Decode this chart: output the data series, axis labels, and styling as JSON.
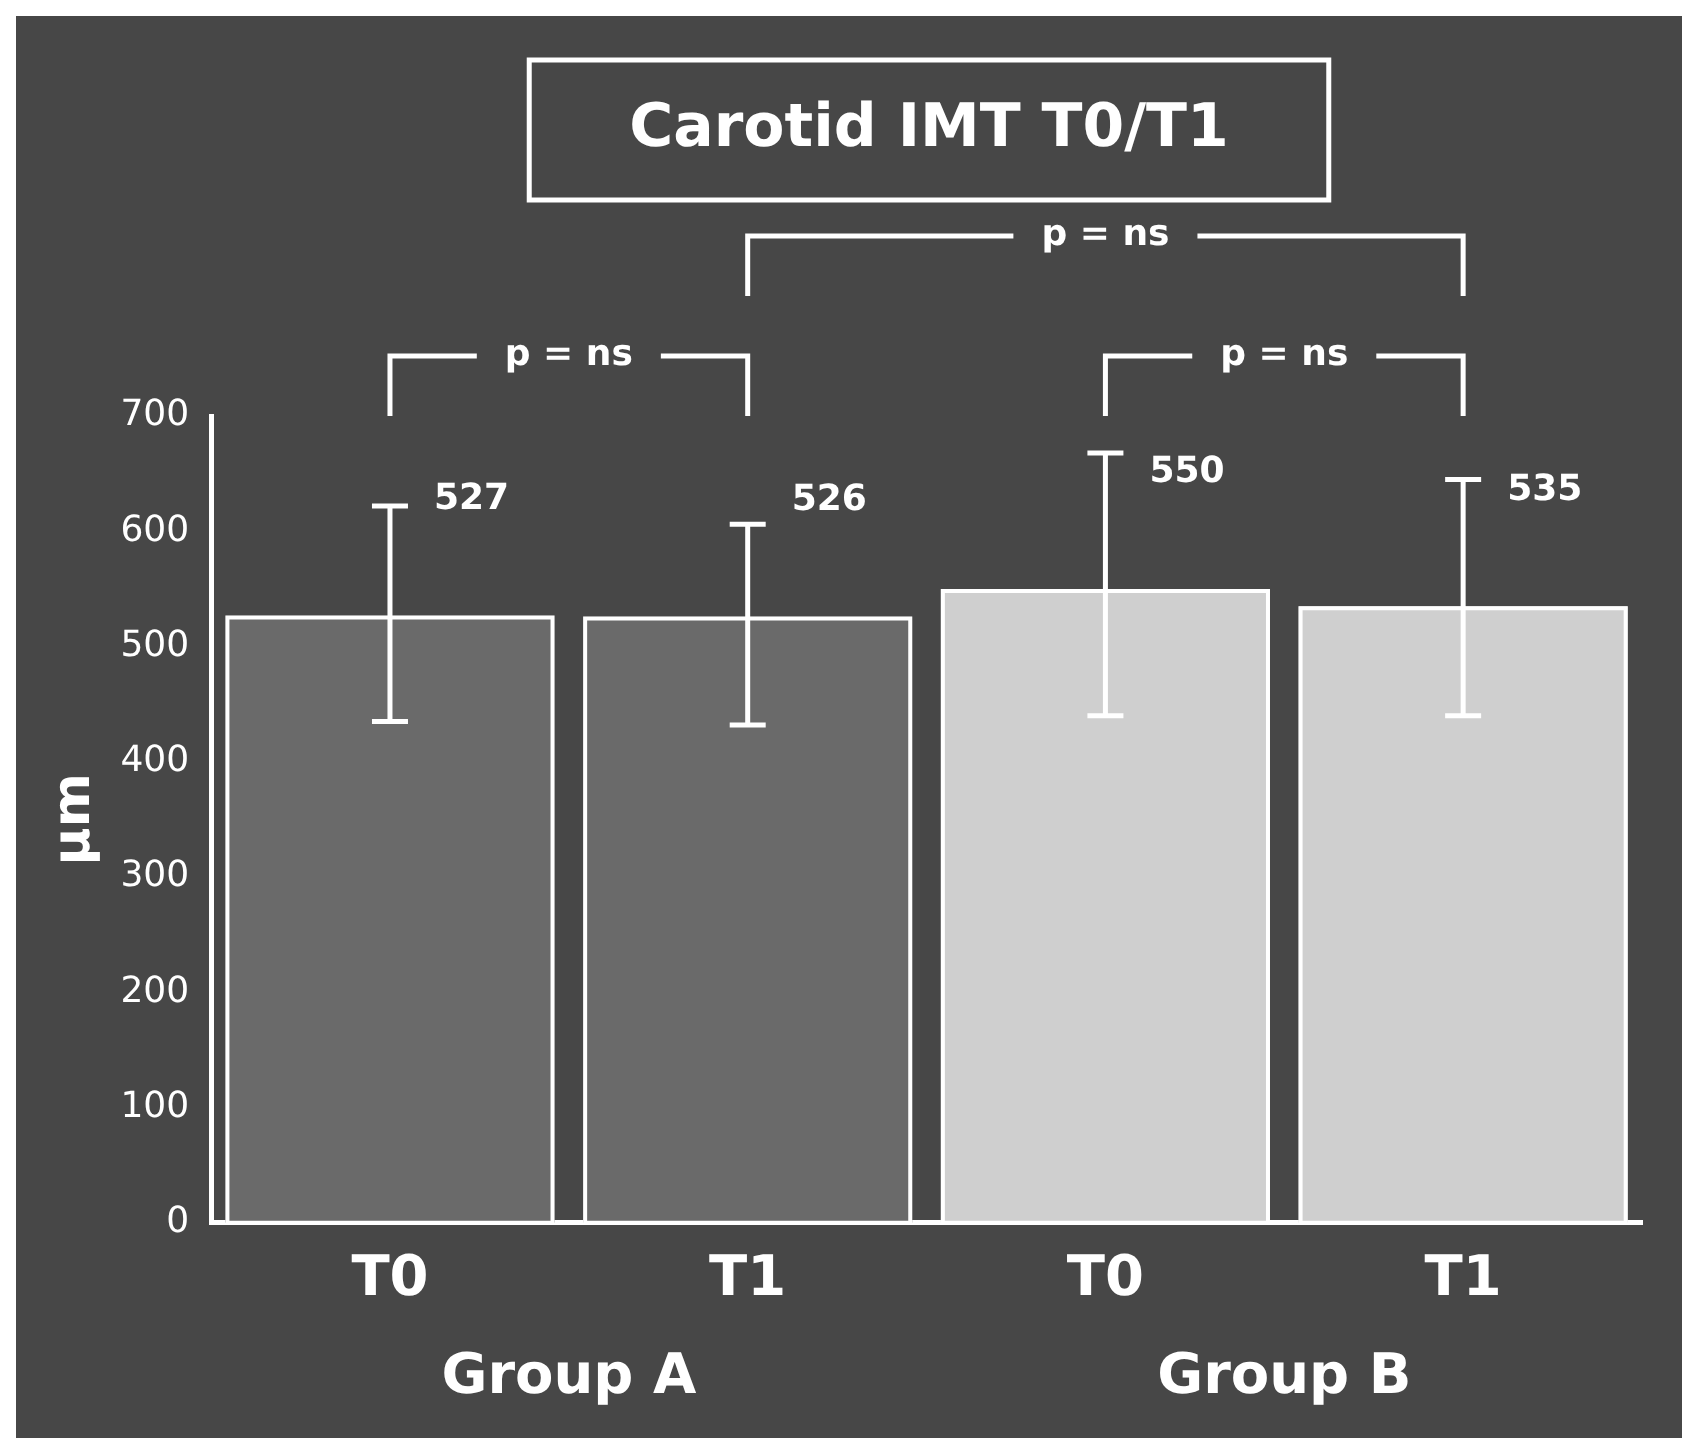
{
  "chart_data": {
    "type": "bar",
    "title": "Carotid IMT T0/T1",
    "ylabel": "µm",
    "categories": [
      "T0",
      "T1",
      "T0",
      "T1"
    ],
    "values": [
      527,
      526,
      550,
      535
    ],
    "colors": [
      "#6a6a6a",
      "#6a6a6a",
      "#cfcfcf",
      "#cfcfcf"
    ],
    "errors": [
      [
        435,
        622
      ],
      [
        432,
        606
      ],
      [
        440,
        668
      ],
      [
        440,
        645
      ]
    ],
    "data_labels": true,
    "ylim": [
      0,
      700
    ],
    "yticks": [
      0,
      100,
      200,
      300,
      400,
      500,
      600,
      700
    ],
    "grid": false,
    "legend": false,
    "annotations": [
      "p = ns",
      "p = ns",
      "p = ns",
      "Group A",
      "Group B"
    ]
  }
}
